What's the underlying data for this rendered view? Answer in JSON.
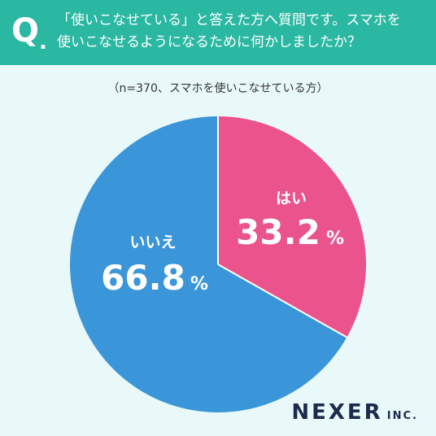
{
  "header": {
    "q_mark": "Q",
    "q_dot": ".",
    "question_line1": "「使いこなせている」と答えた方へ質問です。スマホを",
    "question_line2": "使いこなせるようになるために何かしましたか？"
  },
  "note": "（n=370、スマホを使いこなせている方）",
  "colors": {
    "header_bg": "#2bb8a2",
    "yes": "#ea538b",
    "no": "#3a96d8",
    "background": "#e9f9f9",
    "logo": "#1d2a4d"
  },
  "chart_data": {
    "type": "pie",
    "slices": [
      {
        "label": "はい",
        "value": 33.2,
        "display": "33.2",
        "unit": "%",
        "color": "#ea538b"
      },
      {
        "label": "いいえ",
        "value": 66.8,
        "display": "66.8",
        "unit": "%",
        "color": "#3a96d8"
      }
    ],
    "start": "top",
    "direction": "clockwise"
  },
  "logo": {
    "main": "NEXER",
    "sub": "INC."
  }
}
